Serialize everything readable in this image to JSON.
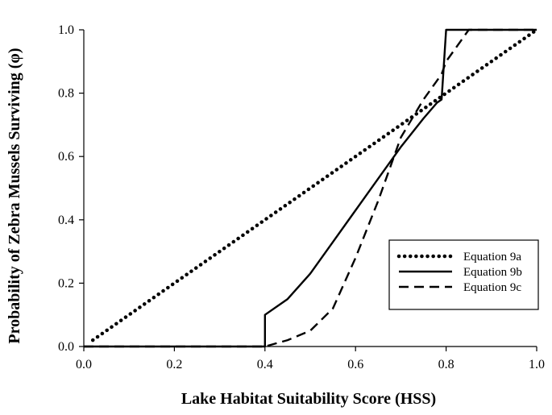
{
  "chart_data": {
    "type": "line",
    "title": "",
    "xlabel": "Lake Habitat Suitability Score (HSS)",
    "ylabel": "Probability of Zebra Mussels Surviving (φ)",
    "xlim": [
      0.0,
      1.0
    ],
    "ylim": [
      0.0,
      1.0
    ],
    "x_ticks": [
      "0.0",
      "0.2",
      "0.4",
      "0.6",
      "0.8",
      "1.0"
    ],
    "y_ticks": [
      "0.0",
      "0.2",
      "0.4",
      "0.6",
      "0.8",
      "1.0"
    ],
    "grid": false,
    "legend_position": "bottom-right",
    "series": [
      {
        "name": "Equation 9a",
        "style": "dotted",
        "x": [
          0.02,
          1.0
        ],
        "y": [
          0.02,
          1.0
        ]
      },
      {
        "name": "Equation 9b",
        "style": "solid",
        "x": [
          0.0,
          0.4,
          0.4,
          0.45,
          0.5,
          0.55,
          0.6,
          0.65,
          0.7,
          0.75,
          0.78,
          0.79,
          0.8,
          1.0
        ],
        "y": [
          0.0,
          0.0,
          0.1,
          0.15,
          0.23,
          0.33,
          0.43,
          0.53,
          0.63,
          0.72,
          0.77,
          0.78,
          1.0,
          1.0
        ]
      },
      {
        "name": "Equation 9c",
        "style": "dashed",
        "x": [
          0.0,
          0.4,
          0.45,
          0.5,
          0.55,
          0.6,
          0.65,
          0.7,
          0.75,
          0.78,
          0.79,
          0.8,
          0.85,
          1.0
        ],
        "y": [
          0.0,
          0.0,
          0.02,
          0.05,
          0.12,
          0.28,
          0.46,
          0.66,
          0.78,
          0.84,
          0.86,
          0.9,
          1.0,
          1.0
        ]
      }
    ]
  }
}
